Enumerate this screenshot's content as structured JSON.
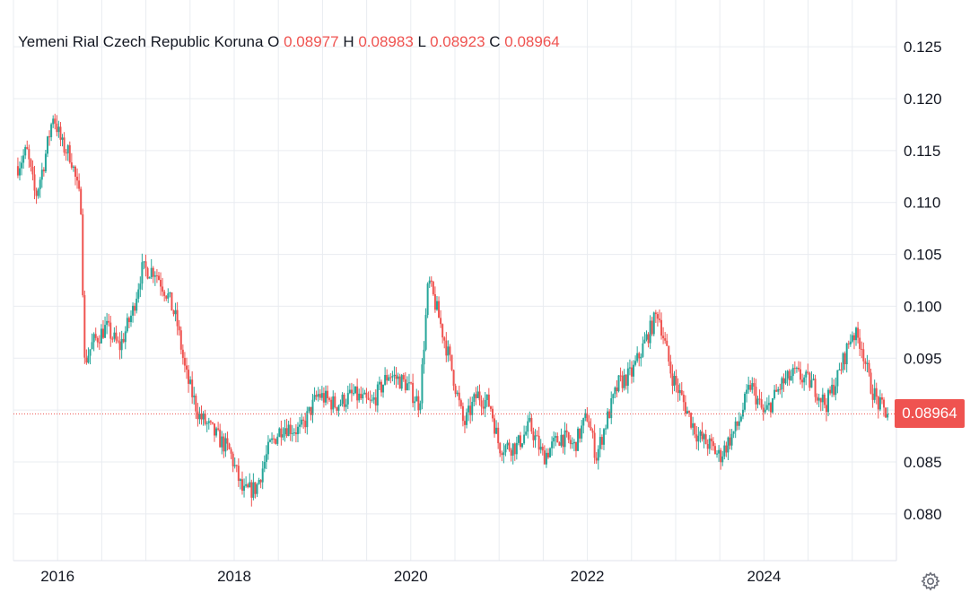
{
  "legend": {
    "title": "Yemeni Rial Czech Republic Koruna",
    "o_label": "O",
    "o_value": "0.08977",
    "h_label": "H",
    "h_value": "0.08983",
    "l_label": "L",
    "l_value": "0.08923",
    "c_label": "C",
    "c_value": "0.08964"
  },
  "price_tag": "0.08964",
  "icons": {
    "settings": "gear-icon"
  },
  "colors": {
    "up": "#26a69a",
    "down": "#ef5350",
    "grid": "#e9ecf1",
    "axis_text": "#131722"
  },
  "chart_data": {
    "type": "candlestick",
    "title": "Yemeni Rial Czech Republic Koruna",
    "xlabel": "",
    "ylabel": "",
    "x_ticks": [
      "2016",
      "2018",
      "2020",
      "2022",
      "2024"
    ],
    "y_ticks": [
      "0.080",
      "0.085",
      "0.090",
      "0.095",
      "0.100",
      "0.105",
      "0.110",
      "0.115",
      "0.120",
      "0.125"
    ],
    "ylim": [
      0.0755,
      0.1295
    ],
    "xlim": [
      2015.5,
      2025.5
    ],
    "last_price": 0.08964,
    "grid": true,
    "series_path": [
      [
        2015.55,
        0.1135
      ],
      [
        2015.65,
        0.115
      ],
      [
        2015.75,
        0.1105
      ],
      [
        2015.85,
        0.114
      ],
      [
        2015.95,
        0.1185
      ],
      [
        2016.05,
        0.1155
      ],
      [
        2016.15,
        0.1145
      ],
      [
        2016.22,
        0.1115
      ],
      [
        2016.27,
        0.1095
      ],
      [
        2016.3,
        0.0945
      ],
      [
        2016.4,
        0.0965
      ],
      [
        2016.55,
        0.098
      ],
      [
        2016.7,
        0.096
      ],
      [
        2016.85,
        0.0995
      ],
      [
        2016.95,
        0.1035
      ],
      [
        2017.1,
        0.1035
      ],
      [
        2017.25,
        0.101
      ],
      [
        2017.35,
        0.0985
      ],
      [
        2017.45,
        0.0935
      ],
      [
        2017.6,
        0.0895
      ],
      [
        2017.8,
        0.0875
      ],
      [
        2017.95,
        0.086
      ],
      [
        2018.1,
        0.082
      ],
      [
        2018.25,
        0.0825
      ],
      [
        2018.4,
        0.0865
      ],
      [
        2018.55,
        0.0885
      ],
      [
        2018.75,
        0.088
      ],
      [
        2018.95,
        0.0915
      ],
      [
        2019.15,
        0.0905
      ],
      [
        2019.35,
        0.0915
      ],
      [
        2019.55,
        0.0905
      ],
      [
        2019.75,
        0.0935
      ],
      [
        2019.95,
        0.0925
      ],
      [
        2020.1,
        0.0905
      ],
      [
        2020.2,
        0.1025
      ],
      [
        2020.3,
        0.0995
      ],
      [
        2020.45,
        0.0945
      ],
      [
        2020.6,
        0.0885
      ],
      [
        2020.75,
        0.0915
      ],
      [
        2020.9,
        0.0905
      ],
      [
        2021.0,
        0.0865
      ],
      [
        2021.2,
        0.0865
      ],
      [
        2021.35,
        0.0885
      ],
      [
        2021.5,
        0.0855
      ],
      [
        2021.7,
        0.0875
      ],
      [
        2021.85,
        0.0865
      ],
      [
        2022.0,
        0.0895
      ],
      [
        2022.1,
        0.0855
      ],
      [
        2022.2,
        0.0885
      ],
      [
        2022.35,
        0.0925
      ],
      [
        2022.5,
        0.0935
      ],
      [
        2022.6,
        0.0955
      ],
      [
        2022.7,
        0.0975
      ],
      [
        2022.8,
        0.0995
      ],
      [
        2022.95,
        0.0935
      ],
      [
        2023.1,
        0.0905
      ],
      [
        2023.25,
        0.0875
      ],
      [
        2023.4,
        0.0865
      ],
      [
        2023.5,
        0.0855
      ],
      [
        2023.7,
        0.0885
      ],
      [
        2023.85,
        0.0925
      ],
      [
        2024.0,
        0.0895
      ],
      [
        2024.2,
        0.0925
      ],
      [
        2024.35,
        0.0935
      ],
      [
        2024.55,
        0.0925
      ],
      [
        2024.7,
        0.0905
      ],
      [
        2024.85,
        0.0935
      ],
      [
        2025.0,
        0.0975
      ],
      [
        2025.1,
        0.0965
      ],
      [
        2025.2,
        0.0925
      ],
      [
        2025.3,
        0.0905
      ],
      [
        2025.4,
        0.0896
      ]
    ]
  }
}
